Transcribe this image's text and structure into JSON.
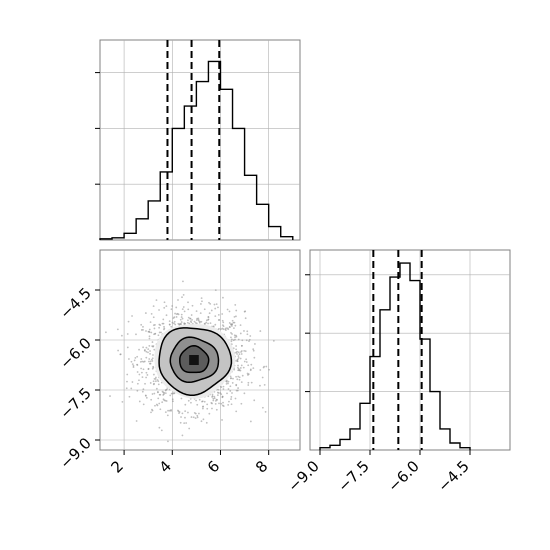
{
  "chart_data": [
    {
      "type": "histogram",
      "panel": "x-marginal",
      "grid": true,
      "xlim": [
        1.0,
        9.3
      ],
      "bin_edges": [
        1.0,
        1.5,
        2.0,
        2.5,
        3.0,
        3.5,
        4.0,
        4.5,
        5.0,
        5.5,
        6.0,
        6.5,
        7.0,
        7.5,
        8.0,
        8.5,
        9.0
      ],
      "counts": [
        1,
        2,
        6,
        19,
        35,
        61,
        100,
        120,
        142,
        160,
        135,
        100,
        58,
        32,
        12,
        3
      ],
      "quantile_lines": [
        3.8,
        4.8,
        5.95
      ],
      "xticks": [
        2,
        4,
        6,
        8
      ]
    },
    {
      "type": "contour-density",
      "panel": "joint",
      "grid": true,
      "xlim": [
        1.0,
        9.3
      ],
      "ylim": [
        -9.3,
        -3.3
      ],
      "center": [
        4.9,
        -6.6
      ],
      "contour_levels": [
        {
          "rx": 1.5,
          "ry": 1.0
        },
        {
          "rx": 1.0,
          "ry": 0.66
        },
        {
          "rx": 0.6,
          "ry": 0.4
        }
      ],
      "xticks": [
        2,
        4,
        6,
        8
      ],
      "xtick_labels": [
        "2",
        "4",
        "6",
        "8"
      ],
      "yticks": [
        -4.5,
        -6.0,
        -7.5,
        -9.0
      ],
      "ytick_labels": [
        "−4.5",
        "−6.0",
        "−7.5",
        "−9.0"
      ]
    },
    {
      "type": "histogram",
      "panel": "y-marginal",
      "grid": true,
      "xlim": [
        -9.3,
        -3.3
      ],
      "bin_edges": [
        -9.0,
        -8.7,
        -8.4,
        -8.1,
        -7.8,
        -7.5,
        -7.2,
        -6.9,
        -6.6,
        -6.3,
        -6.0,
        -5.7,
        -5.4,
        -5.1,
        -4.8,
        -4.5
      ],
      "counts": [
        2,
        4,
        9,
        18,
        40,
        80,
        120,
        148,
        160,
        145,
        95,
        50,
        18,
        6,
        2
      ],
      "quantile_lines": [
        -7.4,
        -6.65,
        -5.95
      ],
      "xticks": [
        -9.0,
        -7.5,
        -6.0,
        -4.5
      ],
      "xtick_labels": [
        "−9.0",
        "−7.5",
        "−6.0",
        "−4.5"
      ]
    }
  ],
  "colors": {
    "line": "#000000",
    "grid": "#b0b0b0",
    "spine": "#808080",
    "scatter": "#8c8c8c",
    "fill_levels": [
      "#ececec",
      "#c4c4c4",
      "#909090",
      "#5c5c5c"
    ]
  }
}
